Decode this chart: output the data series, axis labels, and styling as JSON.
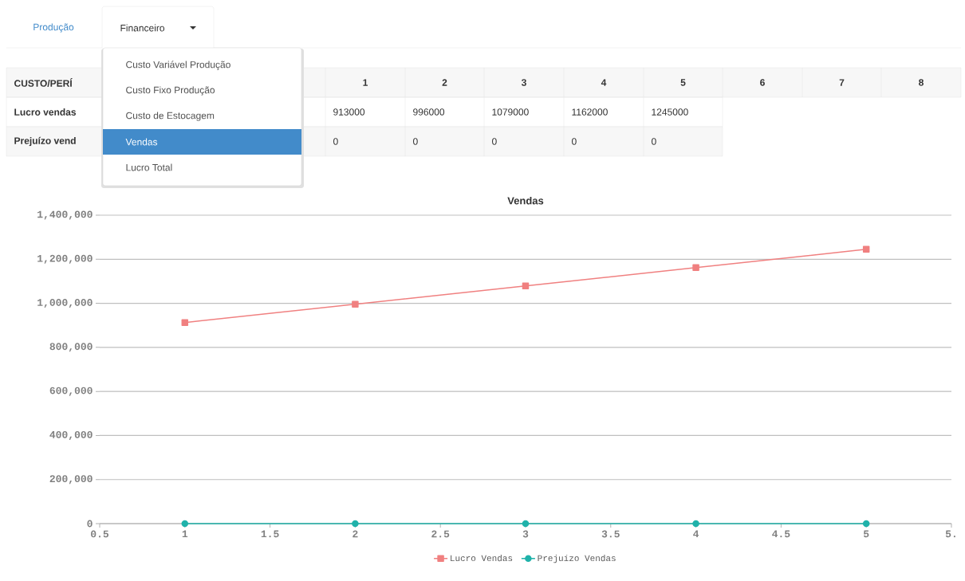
{
  "chart_data": {
    "type": "line",
    "title": "Vendas",
    "xlim": [
      0.5,
      5.5
    ],
    "xticks": [
      0.5,
      1,
      1.5,
      2,
      2.5,
      3,
      3.5,
      4,
      4.5,
      5,
      {
        "value": 5.5,
        "label": "5."
      }
    ],
    "ylim": [
      0,
      1400000
    ],
    "yticks": [
      {
        "value": 0,
        "label": "0"
      },
      {
        "value": 200000,
        "label": "200,000"
      },
      {
        "value": 400000,
        "label": "400,000"
      },
      {
        "value": 600000,
        "label": "600,000"
      },
      {
        "value": 800000,
        "label": "800,000"
      },
      {
        "value": 1000000,
        "label": "1,000,000"
      },
      {
        "value": 1200000,
        "label": "1,200,000"
      },
      {
        "value": 1400000,
        "label": "1,400,000"
      }
    ],
    "x": [
      1,
      2,
      3,
      4,
      5
    ],
    "series": [
      {
        "name": "Lucro Vendas",
        "color": "#f08080",
        "marker": "square",
        "values": [
          913000,
          996000,
          1079000,
          1162000,
          1245000
        ]
      },
      {
        "name": "Prejuízo Vendas",
        "color": "#20b2aa",
        "marker": "circle",
        "values": [
          0,
          0,
          0,
          0,
          0
        ]
      }
    ],
    "grid": "y",
    "legend": "bottom",
    "line_style": "solid",
    "annotations": [
      "Produção",
      "Financeiro",
      "Custo Variável Produção",
      "Custo Fixo Produção",
      "Custo de Estocagem",
      "Vendas",
      "Lucro Total",
      "CUSTO/PERÍ",
      "Lucro vendas",
      "Prejuízo vend",
      "1",
      "2",
      "3",
      "4",
      "5",
      "6",
      "7",
      "8",
      "913000",
      "996000",
      "1079000",
      "1162000",
      "1245000",
      "0",
      "0",
      "0",
      "0",
      "0"
    ]
  }
}
